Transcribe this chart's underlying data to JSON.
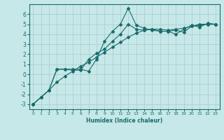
{
  "xlabel": "Humidex (Indice chaleur)",
  "background_color": "#c6e8e8",
  "grid_color": "#aed0d0",
  "line_color": "#1a6b6b",
  "xlim": [
    -0.5,
    23.5
  ],
  "ylim": [
    -3.5,
    7.0
  ],
  "yticks": [
    -3,
    -2,
    -1,
    0,
    1,
    2,
    3,
    4,
    5,
    6
  ],
  "xticks": [
    0,
    1,
    2,
    3,
    4,
    5,
    6,
    7,
    8,
    9,
    10,
    11,
    12,
    13,
    14,
    15,
    16,
    17,
    18,
    19,
    20,
    21,
    22,
    23
  ],
  "line1_x": [
    0,
    1,
    2,
    3,
    4,
    5,
    6,
    7,
    8,
    9,
    10,
    11,
    12,
    13,
    14,
    15,
    16,
    17,
    18,
    19,
    20,
    21,
    22,
    23
  ],
  "line1_y": [
    -3.0,
    -2.3,
    -1.6,
    0.5,
    0.5,
    0.5,
    0.5,
    0.3,
    1.5,
    3.3,
    4.3,
    5.0,
    6.6,
    4.9,
    4.6,
    4.4,
    4.3,
    4.3,
    4.4,
    4.2,
    4.8,
    4.9,
    5.0,
    5.0
  ],
  "line2_x": [
    0,
    1,
    2,
    3,
    4,
    5,
    6,
    7,
    8,
    9,
    10,
    11,
    12,
    13,
    14,
    15,
    16,
    17,
    18,
    19,
    20,
    21,
    22,
    23
  ],
  "line2_y": [
    -3.0,
    -2.3,
    -1.6,
    0.5,
    0.5,
    0.4,
    0.4,
    1.5,
    2.1,
    2.5,
    3.3,
    4.0,
    5.0,
    4.5,
    4.4,
    4.5,
    4.3,
    4.3,
    4.0,
    4.5,
    4.9,
    4.7,
    5.1,
    5.0
  ],
  "line3_x": [
    0,
    1,
    2,
    3,
    4,
    5,
    6,
    7,
    8,
    9,
    10,
    11,
    12,
    13,
    14,
    15,
    16,
    17,
    18,
    19,
    20,
    21,
    22,
    23
  ],
  "line3_y": [
    -3.0,
    -2.3,
    -1.6,
    -0.8,
    -0.2,
    0.3,
    0.8,
    1.2,
    1.7,
    2.2,
    2.7,
    3.2,
    3.7,
    4.1,
    4.4,
    4.5,
    4.5,
    4.4,
    4.5,
    4.6,
    4.8,
    5.0,
    5.0,
    5.0
  ]
}
